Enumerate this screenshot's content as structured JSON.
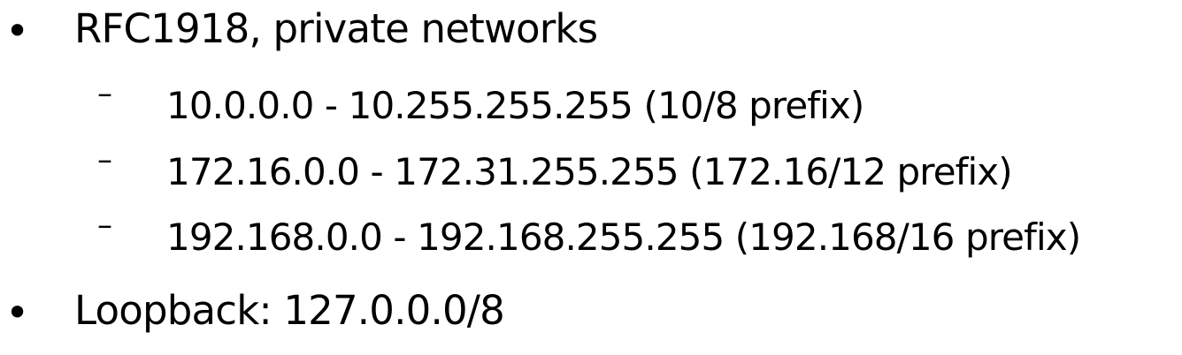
{
  "bullets": [
    {
      "marker": "•",
      "text": "RFC1918, private networks",
      "subitems": [
        {
          "marker": "–",
          "text": "10.0.0.0 - 10.255.255.255  (10/8 prefix)"
        },
        {
          "marker": "–",
          "text": "172.16.0.0 - 172.31.255.255  (172.16/12 prefix)"
        },
        {
          "marker": "–",
          "text": "192.168.0.0 - 192.168.255.255 (192.168/16 prefix)"
        }
      ]
    },
    {
      "marker": "•",
      "text": "Loopback: 127.0.0.0/8"
    }
  ]
}
